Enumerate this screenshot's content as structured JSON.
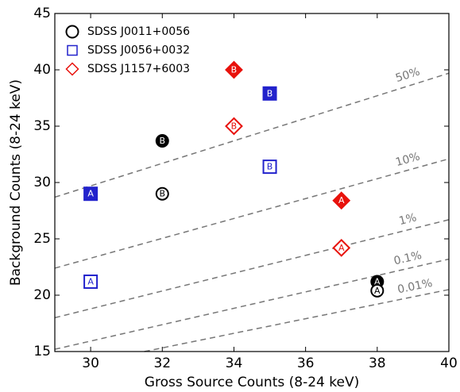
{
  "chart_data": {
    "type": "scatter",
    "xlabel": "Gross Source Counts (8-24 keV)",
    "ylabel": "Background Counts (8-24 keV)",
    "xlim": [
      29,
      40
    ],
    "ylim": [
      15,
      45
    ],
    "xticks": [
      30,
      32,
      34,
      36,
      38,
      40
    ],
    "yticks": [
      15,
      20,
      25,
      30,
      35,
      40,
      45
    ],
    "legend": "upper left",
    "series": [
      {
        "name": "SDSS J0011+0056",
        "color": "#000000",
        "marker": "circle",
        "x": [
          32,
          32,
          38,
          38
        ],
        "values": [
          33.7,
          29,
          21.2,
          20.4
        ],
        "point_labels": [
          "B",
          "B",
          "A",
          "A"
        ],
        "filled": [
          true,
          false,
          true,
          false
        ]
      },
      {
        "name": "SDSS J0056+0032",
        "color": "#2222cc",
        "marker": "square",
        "x": [
          30,
          30,
          35,
          35
        ],
        "values": [
          29,
          21.2,
          37.9,
          31.4
        ],
        "point_labels": [
          "A",
          "A",
          "B",
          "B"
        ],
        "filled": [
          true,
          false,
          true,
          false
        ]
      },
      {
        "name": "SDSS J1157+6003",
        "color": "#e8120c",
        "marker": "diamond",
        "x": [
          34,
          34,
          37,
          37
        ],
        "values": [
          40,
          35,
          28.4,
          24.2
        ],
        "point_labels": [
          "B",
          "B",
          "A",
          "A"
        ],
        "filled": [
          true,
          false,
          true,
          false
        ]
      }
    ],
    "reference_lines": [
      {
        "label": "50%",
        "x": [
          29,
          40
        ],
        "values": [
          28.7,
          39.7
        ]
      },
      {
        "label": "10%",
        "x": [
          29,
          40
        ],
        "values": [
          22.4,
          32.1
        ]
      },
      {
        "label": "1%",
        "x": [
          29,
          40
        ],
        "values": [
          18,
          26.7
        ]
      },
      {
        "label": "0.1%",
        "x": [
          29,
          40
        ],
        "values": [
          15.2,
          23.2
        ]
      },
      {
        "label": "0.01%",
        "x": [
          31.5,
          40
        ],
        "values": [
          15,
          20.5
        ]
      }
    ]
  }
}
